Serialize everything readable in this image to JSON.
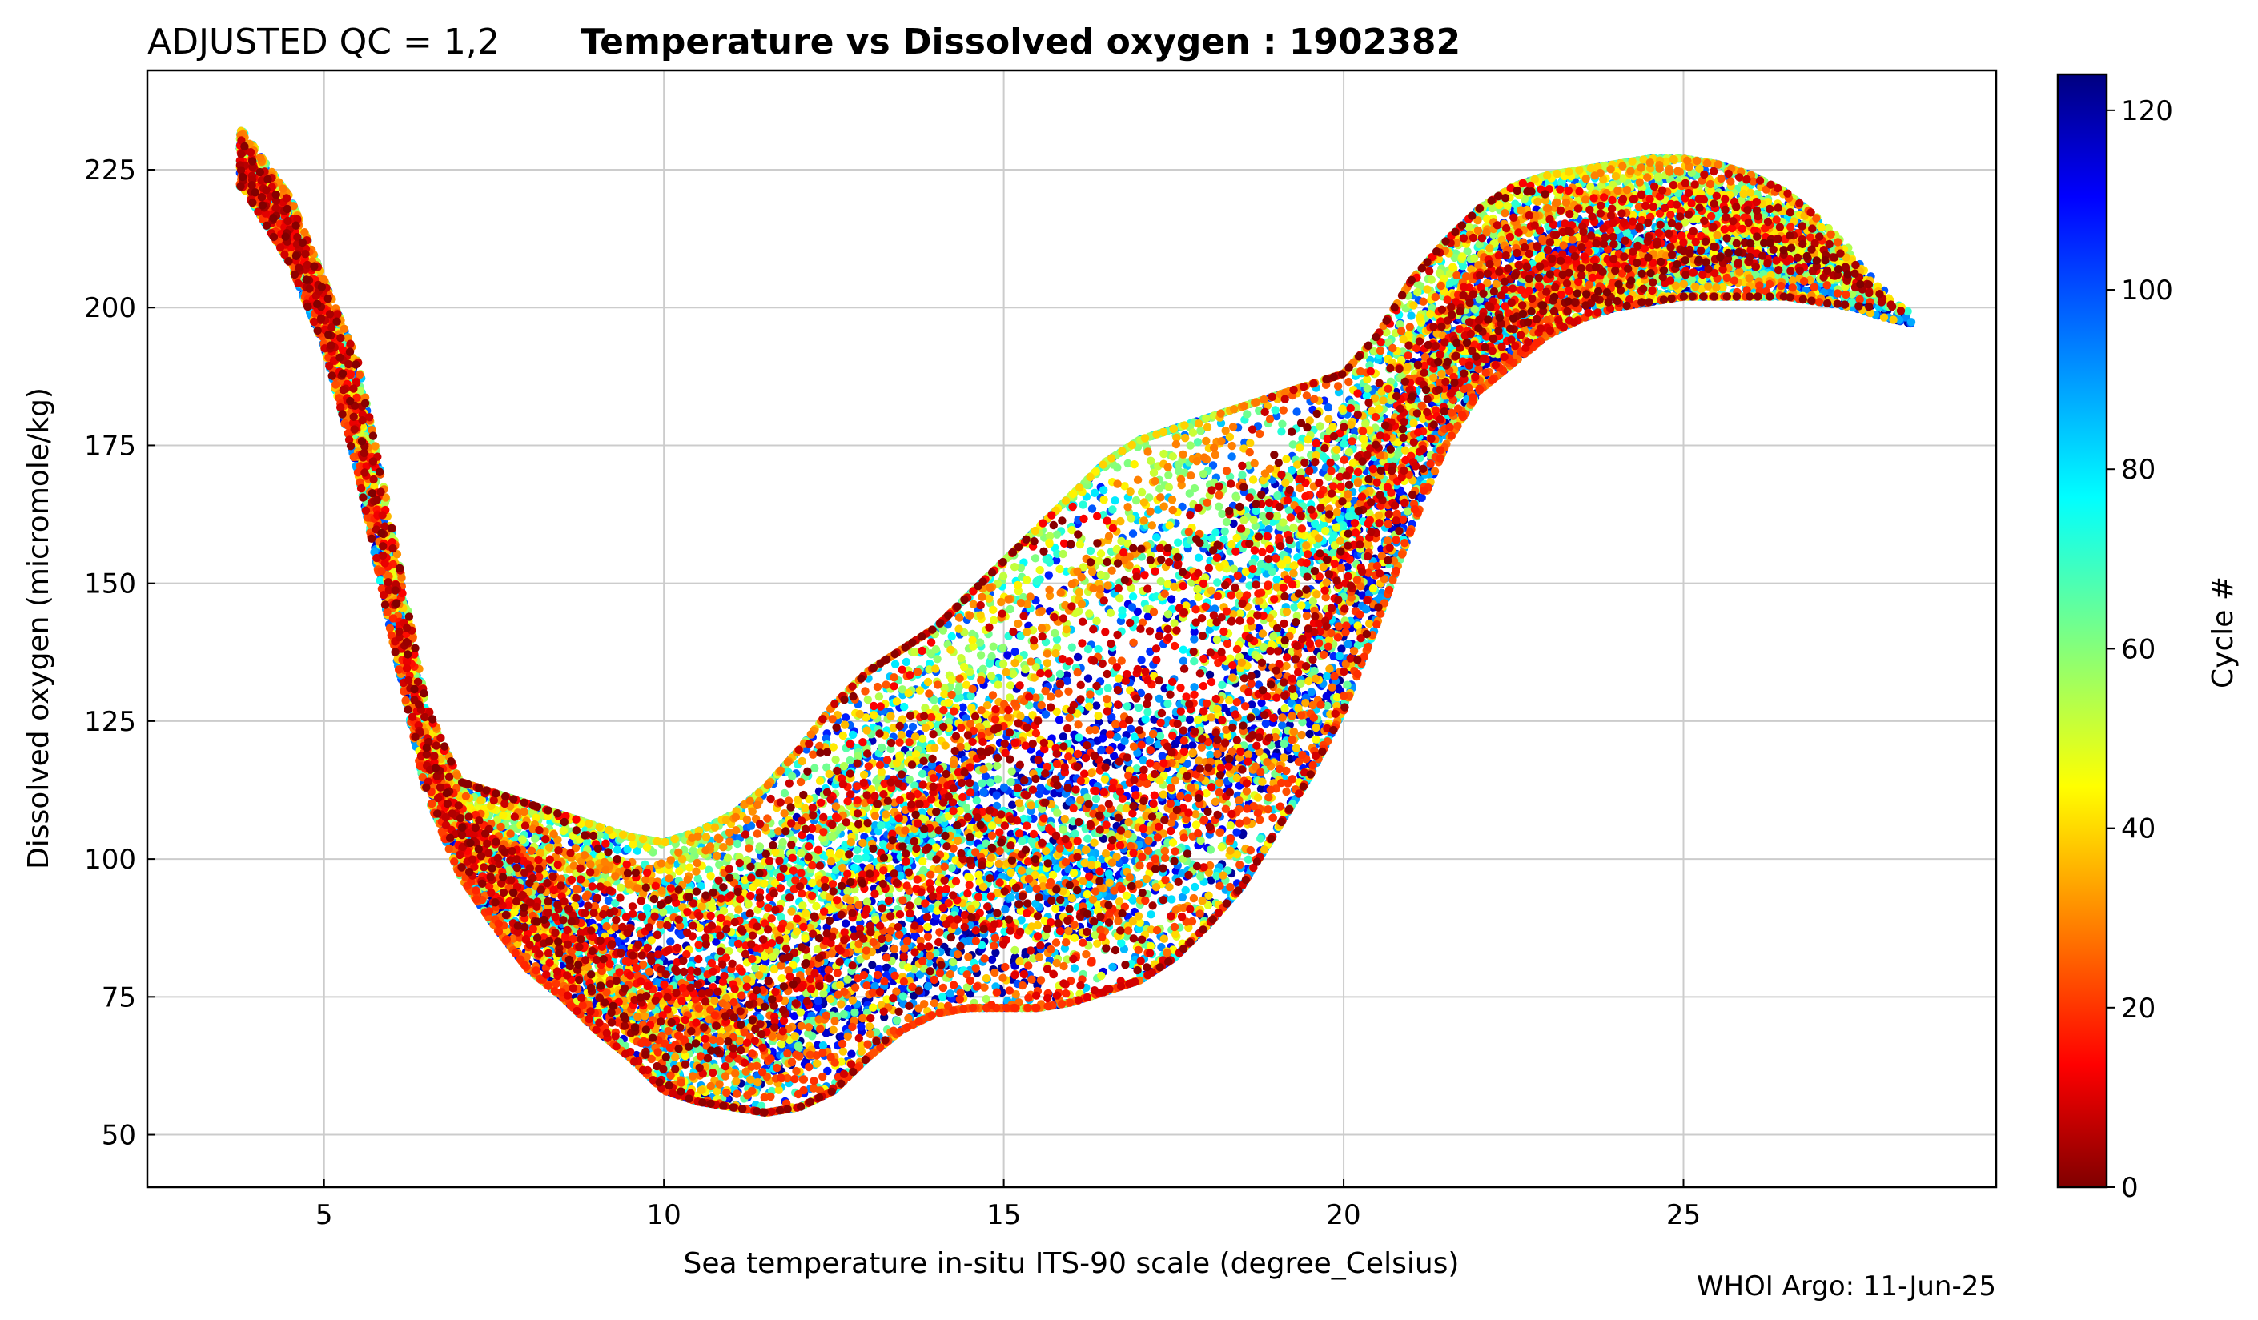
{
  "chart_data": {
    "type": "scatter",
    "title_prefix": "ADJUSTED QC = 1,2",
    "title": "Temperature vs Dissolved oxygen : 1902382",
    "xlabel": "Sea temperature in-situ ITS-90 scale  (degree_Celsius)",
    "ylabel": "Dissolved oxygen  (micromole/kg)",
    "xlim": [
      2.4,
      29.6
    ],
    "ylim": [
      40.5,
      243
    ],
    "x_ticks": [
      5,
      10,
      15,
      20,
      25
    ],
    "y_ticks": [
      50,
      75,
      100,
      125,
      150,
      175,
      200,
      225
    ],
    "grid": true,
    "colorbar": {
      "label": "Cycle #",
      "colormap": "jet",
      "range": [
        0,
        124
      ],
      "ticks": [
        0,
        20,
        40,
        60,
        80,
        100,
        120
      ]
    },
    "profile_envelope": {
      "description_of_points": "upper-ocean profiles, one per cycle; temperature (x) vs oxygen (y)",
      "x": [
        3.8,
        4.5,
        5.0,
        5.5,
        6.0,
        6.5,
        7.0,
        7.5,
        8.0,
        8.5,
        9.0,
        9.5,
        10.0,
        10.5,
        11.0,
        11.5,
        12.0,
        12.5,
        13.0,
        13.5,
        14.0,
        14.5,
        15.0,
        15.5,
        16.0,
        16.5,
        17.0,
        17.5,
        18.0,
        18.5,
        19.0,
        19.5,
        20.0,
        20.5,
        21.0,
        21.5,
        22.0,
        22.5,
        23.0,
        23.5,
        24.0,
        24.5,
        25.0,
        25.5,
        26.0,
        26.5,
        27.0,
        27.5,
        28.0,
        28.4
      ],
      "y_low": [
        222,
        208,
        193,
        170,
        140,
        112,
        97,
        88,
        80,
        75,
        69,
        64,
        58,
        56,
        55,
        54,
        55,
        58,
        64,
        69,
        72,
        73,
        73,
        73,
        74,
        76,
        78,
        82,
        88,
        95,
        105,
        115,
        127,
        143,
        160,
        175,
        185,
        190,
        195,
        198,
        200,
        201,
        202,
        202,
        202,
        202,
        201,
        200,
        198,
        197
      ],
      "y_high": [
        232,
        220,
        205,
        190,
        160,
        128,
        114,
        112,
        110,
        108,
        106,
        104,
        103,
        105,
        108,
        113,
        120,
        128,
        134,
        138,
        142,
        148,
        154,
        160,
        166,
        172,
        176,
        178,
        180,
        182,
        184,
        186,
        188,
        195,
        205,
        212,
        218,
        222,
        224,
        225,
        226,
        227,
        227,
        226,
        224,
        221,
        216,
        210,
        203,
        199
      ]
    }
  },
  "footer": {
    "credit": "WHOI Argo: 11-Jun-25"
  }
}
